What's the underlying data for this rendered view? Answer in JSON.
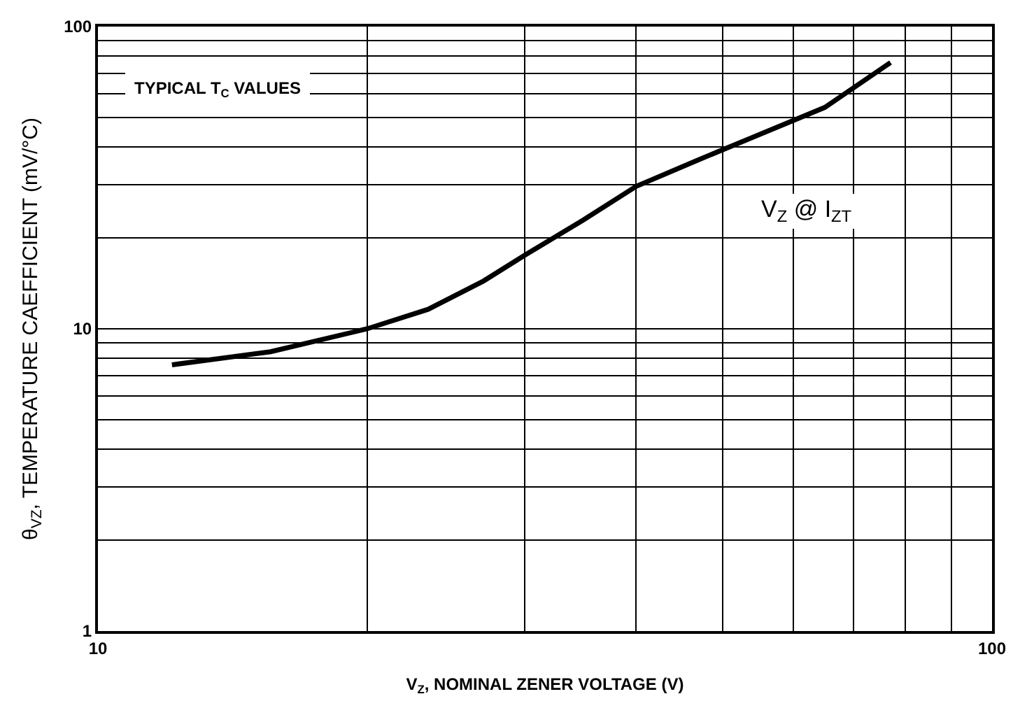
{
  "chart_data": {
    "type": "line",
    "xlabel": "V$_{Z}$, NOMINAL ZENER VOLTAGE (V)",
    "ylabel": "θ$_{VZ}$, TEMPERATURE CAEFFICIENT (mV/°C)",
    "annotations": [
      "TYPICAL T$_{C}$ VALUES"
    ],
    "log": "xy",
    "grid": true,
    "legend": false,
    "marker": "none",
    "line_style": "solid",
    "xlim": [
      10,
      100
    ],
    "ylim": [
      1,
      100
    ],
    "xticks": [
      10,
      {
        "value": 20,
        "label": null
      },
      {
        "value": 30,
        "label": null
      },
      {
        "value": 40,
        "label": null
      },
      {
        "value": 50,
        "label": null
      },
      {
        "value": 60,
        "label": null
      },
      {
        "value": 70,
        "label": null
      },
      {
        "value": 80,
        "label": null
      },
      {
        "value": 90,
        "label": null
      },
      100
    ],
    "yticks": [
      1,
      {
        "value": 2,
        "label": null
      },
      {
        "value": 3,
        "label": null
      },
      {
        "value": 4,
        "label": null
      },
      {
        "value": 5,
        "label": null
      },
      {
        "value": 6,
        "label": null
      },
      {
        "value": 7,
        "label": null
      },
      {
        "value": 8,
        "label": null
      },
      {
        "value": 9,
        "label": null
      },
      10,
      {
        "value": 20,
        "label": null
      },
      {
        "value": 30,
        "label": null
      },
      {
        "value": 40,
        "label": null
      },
      {
        "value": 50,
        "label": null
      },
      {
        "value": 60,
        "label": null
      },
      {
        "value": 70,
        "label": null
      },
      {
        "value": 80,
        "label": null
      },
      {
        "value": 90,
        "label": null
      },
      100
    ],
    "x": [
      12.1,
      15.6,
      20,
      23.4,
      27,
      30,
      34.9,
      40,
      46.7,
      54,
      65,
      77
    ],
    "series": [
      {
        "name": "V$_{Z}$ @ I$_{ZT}$",
        "color": "#000000",
        "values": [
          7.6,
          8.4,
          10,
          11.6,
          14.4,
          17.5,
          22.9,
          29.6,
          36,
          43,
          54,
          76
        ]
      }
    ]
  }
}
